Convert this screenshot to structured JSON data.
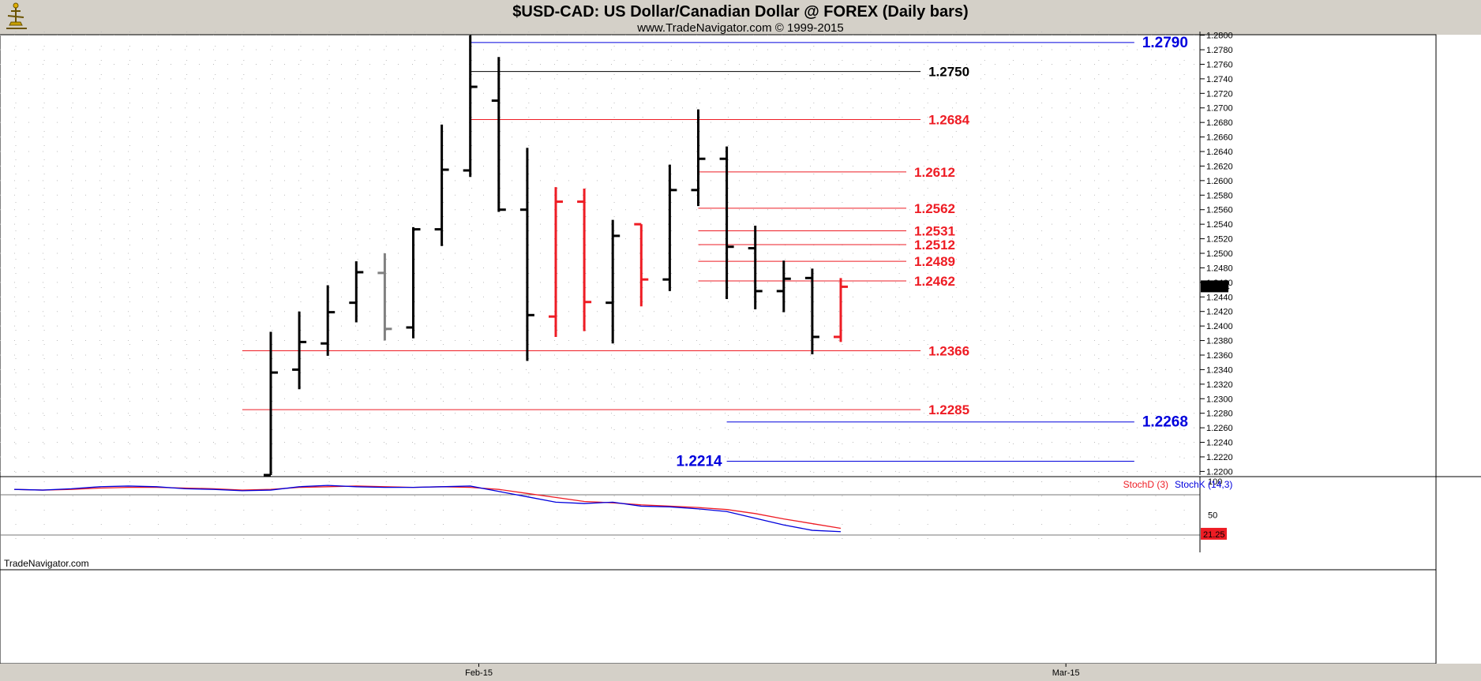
{
  "header": {
    "title": "$USD-CAD:  US Dollar/Canadian Dollar @ FOREX  (Daily bars)",
    "subtitle": "www.TradeNavigator.com © 1999-2015",
    "watermark": "TradeNavigator.com"
  },
  "colors": {
    "price_bar": "#000000",
    "down_bar": "#ee1c24",
    "inside_bar": "#808080",
    "red_level": "#ee1c24",
    "blue_level": "#0000dd",
    "black_level": "#000000",
    "stoch_d": "#ee1c24",
    "stoch_k": "#2a2aee",
    "background": "#ffffff",
    "header_bg": "#d4d0c8"
  },
  "chart_data": [
    {
      "type": "ohlc",
      "title": "$USD-CAD:  US Dollar/Canadian Dollar @ FOREX  (Daily bars)",
      "ylim": [
        1.2195,
        1.2805
      ],
      "y_ticks": [
        "1.2800",
        "1.2780",
        "1.2760",
        "1.2740",
        "1.2720",
        "1.2700",
        "1.2680",
        "1.2660",
        "1.2640",
        "1.2620",
        "1.2600",
        "1.2580",
        "1.2560",
        "1.2540",
        "1.2520",
        "1.2500",
        "1.2480",
        "1.2460",
        "1.2440",
        "1.2420",
        "1.2400",
        "1.2380",
        "1.2360",
        "1.2340",
        "1.2320",
        "1.2300",
        "1.2280",
        "1.2260",
        "1.2240",
        "1.2220",
        "1.2200"
      ],
      "x_labels": [
        {
          "label": "Feb-15",
          "bar_index": 7.3
        },
        {
          "label": "Mar-15",
          "bar_index": 27.9
        }
      ],
      "last_price": "1.2454",
      "bars": [
        {
          "o": 1.2195,
          "h": 1.2392,
          "l": 1.2195,
          "c": 1.2336,
          "color": "black"
        },
        {
          "o": 1.234,
          "h": 1.242,
          "l": 1.2313,
          "c": 1.2378,
          "color": "black"
        },
        {
          "o": 1.2376,
          "h": 1.2456,
          "l": 1.2359,
          "c": 1.2419,
          "color": "black"
        },
        {
          "o": 1.2432,
          "h": 1.2489,
          "l": 1.2405,
          "c": 1.2474,
          "color": "black"
        },
        {
          "o": 1.2473,
          "h": 1.25,
          "l": 1.238,
          "c": 1.2396,
          "color": "gray"
        },
        {
          "o": 1.2398,
          "h": 1.2536,
          "l": 1.2383,
          "c": 1.2533,
          "color": "black"
        },
        {
          "o": 1.2533,
          "h": 1.2677,
          "l": 1.251,
          "c": 1.2615,
          "color": "black"
        },
        {
          "o": 1.2614,
          "h": 1.28,
          "l": 1.2605,
          "c": 1.2729,
          "color": "black"
        },
        {
          "o": 1.271,
          "h": 1.277,
          "l": 1.2557,
          "c": 1.256,
          "color": "black"
        },
        {
          "o": 1.256,
          "h": 1.2645,
          "l": 1.2352,
          "c": 1.2415,
          "color": "black"
        },
        {
          "o": 1.2413,
          "h": 1.2591,
          "l": 1.2385,
          "c": 1.2571,
          "color": "red"
        },
        {
          "o": 1.2571,
          "h": 1.2589,
          "l": 1.2393,
          "c": 1.2433,
          "color": "red"
        },
        {
          "o": 1.2432,
          "h": 1.2546,
          "l": 1.2376,
          "c": 1.2524,
          "color": "black"
        },
        {
          "o": 1.254,
          "h": 1.254,
          "l": 1.2427,
          "c": 1.2464,
          "color": "red"
        },
        {
          "o": 1.2464,
          "h": 1.2622,
          "l": 1.2448,
          "c": 1.2587,
          "color": "black"
        },
        {
          "o": 1.2587,
          "h": 1.2698,
          "l": 1.2565,
          "c": 1.263,
          "color": "black"
        },
        {
          "o": 1.263,
          "h": 1.2647,
          "l": 1.2437,
          "c": 1.2509,
          "color": "black"
        },
        {
          "o": 1.2507,
          "h": 1.2538,
          "l": 1.2423,
          "c": 1.2448,
          "color": "black"
        },
        {
          "o": 1.2448,
          "h": 1.249,
          "l": 1.2419,
          "c": 1.2465,
          "color": "black"
        },
        {
          "o": 1.2466,
          "h": 1.2479,
          "l": 1.2361,
          "c": 1.2385,
          "color": "black"
        },
        {
          "o": 1.2385,
          "h": 1.2466,
          "l": 1.2378,
          "c": 1.2454,
          "color": "red"
        }
      ],
      "levels": [
        {
          "label": "1.2790",
          "value": 1.279,
          "color": "blue",
          "from_bar": 7,
          "to_bar": 30.3,
          "label_pos": "right",
          "size": "big"
        },
        {
          "label": "1.2750",
          "value": 1.275,
          "color": "black",
          "from_bar": 7,
          "to_bar": 22.8,
          "label_pos": "right",
          "size": "normal"
        },
        {
          "label": "1.2684",
          "value": 1.2684,
          "color": "red",
          "from_bar": 7,
          "to_bar": 22.8,
          "label_pos": "right",
          "size": "normal"
        },
        {
          "label": "1.2612",
          "value": 1.2612,
          "color": "red",
          "from_bar": 15,
          "to_bar": 22.3,
          "label_pos": "right",
          "size": "normal"
        },
        {
          "label": "1.2562",
          "value": 1.2562,
          "color": "red",
          "from_bar": 15,
          "to_bar": 22.3,
          "label_pos": "right",
          "size": "normal"
        },
        {
          "label": "1.2531",
          "value": 1.2531,
          "color": "red",
          "from_bar": 15,
          "to_bar": 22.3,
          "label_pos": "right",
          "size": "normal"
        },
        {
          "label": "1.2512",
          "value": 1.2512,
          "color": "red",
          "from_bar": 15,
          "to_bar": 22.3,
          "label_pos": "right",
          "size": "normal"
        },
        {
          "label": "1.2489",
          "value": 1.2489,
          "color": "red",
          "from_bar": 15,
          "to_bar": 22.3,
          "label_pos": "right",
          "size": "normal"
        },
        {
          "label": "1.2462",
          "value": 1.2462,
          "color": "red",
          "from_bar": 15,
          "to_bar": 22.3,
          "label_pos": "right",
          "size": "normal"
        },
        {
          "label": "1.2366",
          "value": 1.2366,
          "color": "red",
          "from_bar": -1,
          "to_bar": 22.8,
          "label_pos": "right",
          "size": "normal"
        },
        {
          "label": "1.2285",
          "value": 1.2285,
          "color": "red",
          "from_bar": -1,
          "to_bar": 22.8,
          "label_pos": "right",
          "size": "normal"
        },
        {
          "label": "1.2268",
          "value": 1.2268,
          "color": "blue",
          "from_bar": 16,
          "to_bar": 30.3,
          "label_pos": "right",
          "size": "big"
        },
        {
          "label": "1.2214",
          "value": 1.2214,
          "color": "blue",
          "from_bar": 16,
          "to_bar": 30.3,
          "label_pos": "left",
          "size": "big"
        }
      ]
    },
    {
      "type": "line",
      "title": "",
      "ylim": [
        0,
        100
      ],
      "y_ticks": [
        "100",
        "50"
      ],
      "reference_lines": [
        80,
        20
      ],
      "last_value": "21.25",
      "x_bar_index": [
        -9,
        -8,
        -7,
        -6,
        -5,
        -4,
        -3,
        -2,
        -1,
        0,
        1,
        2,
        3,
        4,
        5,
        6,
        7,
        8,
        9,
        10,
        11,
        12,
        13,
        14,
        15,
        16,
        17,
        18,
        19,
        20
      ],
      "series": [
        {
          "name": "StochD (3)",
          "color": "red",
          "values": [
            88,
            87,
            88,
            90,
            91,
            91,
            90,
            89,
            87,
            88,
            91,
            92,
            93,
            92,
            91,
            92,
            91,
            88,
            82,
            76,
            70,
            68,
            65,
            63,
            61,
            58,
            52,
            44,
            37,
            30
          ]
        },
        {
          "name": "StochK (14,3)",
          "color": "blue",
          "values": [
            88,
            87,
            89,
            92,
            93,
            92,
            89,
            88,
            86,
            87,
            92,
            94,
            92,
            91,
            91,
            92,
            93,
            85,
            77,
            69,
            67,
            69,
            63,
            62,
            59,
            55,
            45,
            35,
            27,
            25
          ]
        }
      ]
    }
  ]
}
